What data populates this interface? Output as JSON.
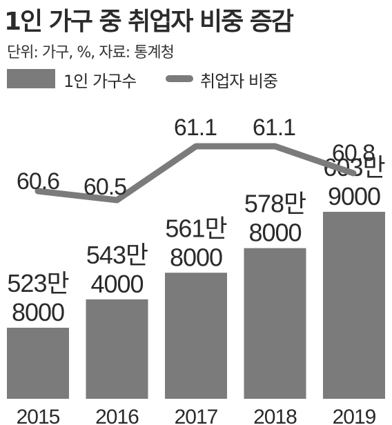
{
  "title": "1인 가구 중 취업자 비중 증감",
  "unit_note": "단위: 가구, %, 자료: 통계청",
  "colors": {
    "bar": "#7b7b7b",
    "line": "#7b7b7b",
    "text": "#2a2a2a"
  },
  "chart_data": {
    "type": "bar",
    "title": "1인 가구 중 취업자 비중 증감",
    "categories": [
      "2015",
      "2016",
      "2017",
      "2018",
      "2019"
    ],
    "series": [
      {
        "name": "1인 가구수",
        "type": "bar",
        "values": [
          5238000,
          5434000,
          5618000,
          5788000,
          6039000
        ],
        "labels": [
          [
            "523만",
            "8000"
          ],
          [
            "543만",
            "4000"
          ],
          [
            "561만",
            "8000"
          ],
          [
            "578만",
            "8000"
          ],
          [
            "603만",
            "9000"
          ]
        ]
      },
      {
        "name": "취업자 비중",
        "type": "line",
        "values": [
          60.6,
          60.5,
          61.1,
          61.1,
          60.8
        ],
        "labels": [
          "60.6",
          "60.5",
          "61.1",
          "61.1",
          "60.8"
        ]
      }
    ],
    "legend": "top-left",
    "grid": false
  }
}
